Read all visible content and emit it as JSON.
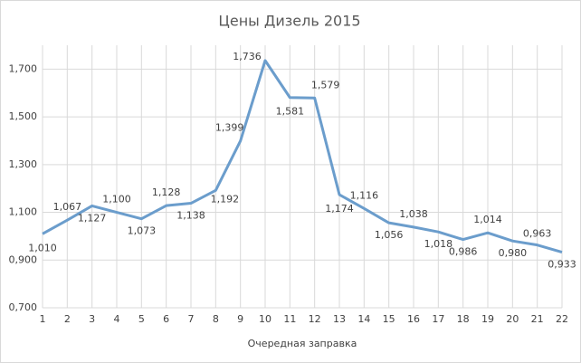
{
  "chart_data": {
    "type": "line",
    "title": "Цены Дизель 2015",
    "x_label": "Очередная заправка",
    "x": [
      1,
      2,
      3,
      4,
      5,
      6,
      7,
      8,
      9,
      10,
      11,
      12,
      13,
      14,
      15,
      16,
      17,
      18,
      19,
      20,
      21,
      22
    ],
    "xlim": [
      1,
      22
    ],
    "xticks": [
      1,
      2,
      3,
      4,
      5,
      6,
      7,
      8,
      9,
      10,
      11,
      12,
      13,
      14,
      15,
      16,
      17,
      18,
      19,
      20,
      21,
      22
    ],
    "series": [
      {
        "color": "#6b9dcc",
        "values": [
          1.01,
          1.067,
          1.127,
          1.1,
          1.073,
          1.128,
          1.138,
          1.192,
          1.399,
          1.736,
          1.581,
          1.579,
          1.174,
          1.116,
          1.056,
          1.038,
          1.018,
          0.986,
          1.014,
          0.98,
          0.963,
          0.933
        ],
        "value_labels": [
          "1,010",
          "1,067",
          "1,127",
          "1,100",
          "1,073",
          "1,128",
          "1,138",
          "1,192",
          "1,399",
          "1,736",
          "1,581",
          "1,579",
          "1,174",
          "1,116",
          "1,056",
          "1,038",
          "1,018",
          "0,986",
          "1,014",
          "0,980",
          "0,963",
          "0,933"
        ]
      }
    ],
    "ylim": [
      0.7,
      1.8
    ],
    "yticks": [
      {
        "value": 0.7,
        "label": "0,700"
      },
      {
        "value": 0.9,
        "label": "0,900"
      },
      {
        "value": 1.1,
        "label": "1,100"
      },
      {
        "value": 1.3,
        "label": "1,300"
      },
      {
        "value": 1.5,
        "label": "1,500"
      },
      {
        "value": 1.7,
        "label": "1,700"
      }
    ],
    "grid": true
  }
}
